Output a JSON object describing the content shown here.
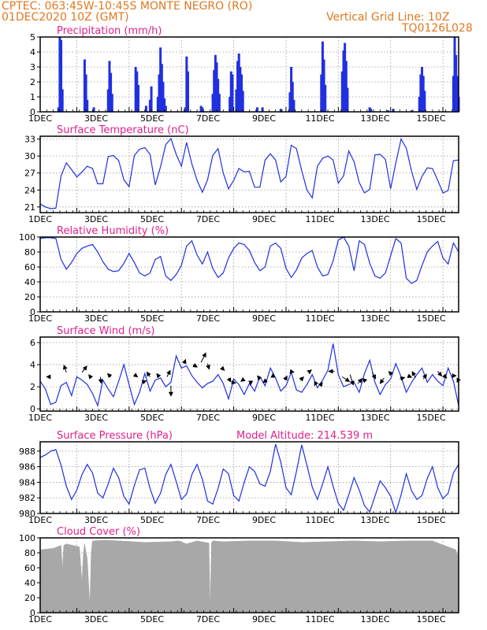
{
  "header": {
    "line1": "CPTEC:   063:45W-10:45S   MONTE NEGRO (RO)",
    "line2": "01DEC2020 10Z (GMT)",
    "right1": "Vertical Grid Line: 10Z",
    "right2": "TQ0126L028"
  },
  "colors": {
    "series": "#2030e0",
    "title": "#e0208a",
    "header": "#e07820",
    "cloud": "#a8a8a8",
    "grid": "#999999"
  },
  "x_tick_labels": [
    "1DEC",
    "3DEC",
    "5DEC",
    "7DEC",
    "9DEC",
    "11DEC",
    "13DEC",
    "15DEC"
  ],
  "chart_data": [
    {
      "id": "precip",
      "type": "bar",
      "title": "Precipitation (mm/h)",
      "ylim": [
        0,
        5
      ],
      "yticks": [
        0,
        1,
        2,
        3,
        4,
        5
      ],
      "x_unit": "days since 01DEC2020 00Z",
      "xlim": [
        0,
        16
      ],
      "bars": [
        [
          0.7,
          0.3
        ],
        [
          0.75,
          5
        ],
        [
          0.8,
          4.8
        ],
        [
          0.85,
          1.5
        ],
        [
          1.7,
          3.5
        ],
        [
          1.75,
          2.5
        ],
        [
          1.8,
          0.8
        ],
        [
          2.05,
          0.3
        ],
        [
          2.6,
          1.5
        ],
        [
          2.65,
          3.4
        ],
        [
          2.7,
          2.6
        ],
        [
          2.75,
          1.2
        ],
        [
          3.65,
          3
        ],
        [
          3.7,
          2.7
        ],
        [
          3.75,
          1.8
        ],
        [
          4.05,
          0.4
        ],
        [
          4.2,
          0.8
        ],
        [
          4.25,
          1.7
        ],
        [
          4.5,
          1
        ],
        [
          4.55,
          2.5
        ],
        [
          4.6,
          4.3
        ],
        [
          4.65,
          3.2
        ],
        [
          4.7,
          2
        ],
        [
          4.75,
          0.9
        ],
        [
          4.8,
          0.4
        ],
        [
          5.55,
          0.3
        ],
        [
          5.6,
          3.7
        ],
        [
          5.65,
          2.7
        ],
        [
          6.15,
          0.4
        ],
        [
          6.2,
          0.3
        ],
        [
          6.6,
          1.2
        ],
        [
          6.65,
          2.8
        ],
        [
          6.7,
          3.8
        ],
        [
          6.75,
          3.3
        ],
        [
          6.8,
          2.2
        ],
        [
          6.85,
          1.2
        ],
        [
          7.25,
          1
        ],
        [
          7.3,
          2.7
        ],
        [
          7.35,
          2.5
        ],
        [
          7.5,
          1.5
        ],
        [
          7.55,
          3.4
        ],
        [
          7.6,
          3.9
        ],
        [
          7.65,
          3
        ],
        [
          7.7,
          2.5
        ],
        [
          7.75,
          1.4
        ],
        [
          8.3,
          0.3
        ],
        [
          8.5,
          0.3
        ],
        [
          9.2,
          0.2
        ],
        [
          9.55,
          1.3
        ],
        [
          9.6,
          3
        ],
        [
          9.65,
          2
        ],
        [
          9.7,
          0.8
        ],
        [
          10.75,
          2.5
        ],
        [
          10.8,
          4.7
        ],
        [
          10.85,
          3.5
        ],
        [
          10.9,
          1.8
        ],
        [
          11.55,
          2.7
        ],
        [
          11.6,
          4.1
        ],
        [
          11.65,
          4.6
        ],
        [
          11.7,
          3.4
        ],
        [
          11.75,
          1.6
        ],
        [
          12.6,
          0.3
        ],
        [
          12.65,
          0.2
        ],
        [
          13.3,
          0.1
        ],
        [
          13.5,
          0.2
        ],
        [
          14.2,
          0.1
        ],
        [
          14.5,
          1
        ],
        [
          14.55,
          2.5
        ],
        [
          14.6,
          3
        ],
        [
          14.65,
          2.4
        ],
        [
          14.7,
          1.4
        ],
        [
          15.8,
          2.4
        ],
        [
          15.85,
          5
        ],
        [
          15.9,
          3.8
        ],
        [
          15.95,
          2.4
        ],
        [
          16,
          1
        ]
      ]
    },
    {
      "id": "temp",
      "type": "line",
      "title": "Surface Temperature (nC)",
      "ylim": [
        20,
        33.5
      ],
      "yticks": [
        21,
        24,
        27,
        30,
        33
      ],
      "x": [
        0,
        0.2,
        0.4,
        0.6,
        0.8,
        1,
        1.2,
        1.4,
        1.6,
        1.8,
        2,
        2.2,
        2.4,
        2.6,
        2.8,
        3,
        3.2,
        3.4,
        3.6,
        3.8,
        4,
        4.2,
        4.4,
        4.6,
        4.8,
        5,
        5.2,
        5.4,
        5.6,
        5.8,
        6,
        6.2,
        6.4,
        6.6,
        6.8,
        7,
        7.2,
        7.4,
        7.6,
        7.8,
        8,
        8.2,
        8.4,
        8.6,
        8.8,
        9,
        9.2,
        9.4,
        9.6,
        9.8,
        10,
        10.2,
        10.4,
        10.6,
        10.8,
        11,
        11.2,
        11.4,
        11.6,
        11.8,
        12,
        12.2,
        12.4,
        12.6,
        12.8,
        13,
        13.2,
        13.4,
        13.6,
        13.8,
        14,
        14.2,
        14.4,
        14.6,
        14.8,
        15,
        15.2,
        15.4,
        15.6,
        15.8,
        16
      ],
      "y": [
        21.5,
        21,
        20.7,
        20.8,
        26.5,
        28.8,
        27.6,
        26.3,
        27.2,
        28.2,
        27.8,
        25.1,
        25.1,
        29.9,
        30.1,
        29.2,
        25.8,
        24.6,
        30.1,
        31.2,
        31.5,
        30.3,
        24.9,
        28.1,
        32,
        33.1,
        30.3,
        28.2,
        32.4,
        28.6,
        25.7,
        23.6,
        25.8,
        30.1,
        31.3,
        27,
        24.2,
        25.7,
        27.8,
        27.2,
        27.3,
        24.5,
        24.5,
        29.3,
        30.4,
        29.3,
        25.4,
        26.4,
        31.9,
        31.3,
        27.4,
        24,
        22.6,
        28.2,
        29.6,
        30,
        29.3,
        25.2,
        26.5,
        30.9,
        29,
        25.3,
        23.5,
        24.1,
        30.2,
        30.3,
        29.4,
        24.2,
        28.8,
        33,
        31.4,
        27.3,
        24.1,
        26.4,
        27.9,
        27.8,
        25.7,
        23.5,
        23.9,
        29.2,
        29.3
      ]
    },
    {
      "id": "rh",
      "type": "line",
      "title": "Relative Humidity (%)",
      "ylim": [
        0,
        100
      ],
      "yticks": [
        0,
        20,
        40,
        60,
        80,
        100
      ],
      "x": [
        0,
        0.2,
        0.4,
        0.6,
        0.8,
        1,
        1.2,
        1.4,
        1.6,
        1.8,
        2,
        2.2,
        2.4,
        2.6,
        2.8,
        3,
        3.2,
        3.4,
        3.6,
        3.8,
        4,
        4.2,
        4.4,
        4.6,
        4.8,
        5,
        5.2,
        5.4,
        5.6,
        5.8,
        6,
        6.2,
        6.4,
        6.6,
        6.8,
        7,
        7.2,
        7.4,
        7.6,
        7.8,
        8,
        8.2,
        8.4,
        8.6,
        8.8,
        9,
        9.2,
        9.4,
        9.6,
        9.8,
        10,
        10.2,
        10.4,
        10.6,
        10.8,
        11,
        11.2,
        11.4,
        11.6,
        11.8,
        12,
        12.2,
        12.4,
        12.6,
        12.8,
        13,
        13.2,
        13.4,
        13.6,
        13.8,
        14,
        14.2,
        14.4,
        14.6,
        14.8,
        15,
        15.2,
        15.4,
        15.6,
        15.8,
        16
      ],
      "y": [
        98,
        99,
        99,
        98,
        70,
        57,
        66,
        78,
        85,
        88,
        90,
        80,
        67,
        57,
        54,
        55,
        65,
        78,
        66,
        52,
        48,
        52,
        70,
        74,
        48,
        42,
        50,
        62,
        88,
        95,
        76,
        64,
        80,
        58,
        46,
        52,
        72,
        85,
        92,
        90,
        82,
        66,
        55,
        60,
        88,
        92,
        85,
        58,
        46,
        56,
        72,
        78,
        82,
        60,
        48,
        50,
        68,
        96,
        100,
        88,
        55,
        95,
        90,
        65,
        48,
        45,
        52,
        75,
        98,
        92,
        45,
        38,
        42,
        62,
        80,
        88,
        94,
        72,
        64,
        92,
        80
      ]
    },
    {
      "id": "wind",
      "type": "line",
      "title": "Surface Wind (m/s)",
      "ylim": [
        -0.2,
        6.5
      ],
      "yticks": [
        0,
        2,
        4,
        6
      ],
      "x": [
        0,
        0.2,
        0.4,
        0.6,
        0.8,
        1,
        1.2,
        1.4,
        1.6,
        1.8,
        2,
        2.2,
        2.4,
        2.6,
        2.8,
        3,
        3.2,
        3.4,
        3.6,
        3.8,
        4,
        4.2,
        4.4,
        4.6,
        4.8,
        5,
        5.2,
        5.4,
        5.6,
        5.8,
        6,
        6.2,
        6.4,
        6.6,
        6.8,
        7,
        7.2,
        7.4,
        7.6,
        7.8,
        8,
        8.2,
        8.4,
        8.6,
        8.8,
        9,
        9.2,
        9.4,
        9.6,
        9.8,
        10,
        10.2,
        10.4,
        10.6,
        10.8,
        11,
        11.2,
        11.4,
        11.6,
        11.8,
        12,
        12.2,
        12.4,
        12.6,
        12.8,
        13,
        13.2,
        13.4,
        13.6,
        13.8,
        14,
        14.2,
        14.4,
        14.6,
        14.8,
        15,
        15.2,
        15.4,
        15.6,
        15.8,
        16
      ],
      "y": [
        2.5,
        1.8,
        0.4,
        0.6,
        2.1,
        2.4,
        1.2,
        2.9,
        2.6,
        2.2,
        1.4,
        0.3,
        2.6,
        1.8,
        1.1,
        2.5,
        4,
        2.2,
        0.4,
        1.5,
        3.2,
        1.6,
        2.6,
        2.8,
        2,
        2.4,
        4.8,
        3.7,
        3.9,
        3,
        2.4,
        1.9,
        2.3,
        2.5,
        3.1,
        2.3,
        0.9,
        2.7,
        2.2,
        1.3,
        2.3,
        1.6,
        2.9,
        2.1,
        3.7,
        2.8,
        1.6,
        2.1,
        3.3,
        1.7,
        1.5,
        2.2,
        3.1,
        1.9,
        2.6,
        3.5,
        5.9,
        3.1,
        2,
        2.2,
        2.4,
        1.5,
        3.2,
        4.4,
        2.4,
        1.3,
        2.2,
        2.7,
        4.1,
        2.9,
        1.5,
        2.4,
        3.1,
        3.7,
        2.4,
        3.1,
        2.5,
        2.1,
        3.7,
        2.5,
        0.3
      ],
      "arrows": [
        [
          0.4,
          2.9,
          -0.5,
          0
        ],
        [
          1,
          3.3,
          -0.3,
          0.9
        ],
        [
          1.6,
          3.3,
          0.6,
          0.8
        ],
        [
          1.95,
          2.8,
          -0.3,
          0.4
        ],
        [
          2.3,
          2.9,
          0.1,
          -0.8
        ],
        [
          2.7,
          2.9,
          -0.4,
          0.4
        ],
        [
          3.6,
          3.1,
          0.4,
          -0.3
        ],
        [
          3.9,
          2.4,
          0.5,
          0.2
        ],
        [
          4.2,
          2.9,
          -0.4,
          0.6
        ],
        [
          4.55,
          2.9,
          -0.3,
          0.4
        ],
        [
          4.85,
          2.9,
          0.4,
          0.8
        ],
        [
          5,
          2.1,
          0,
          -1.3
        ],
        [
          5.5,
          4.1,
          0.2,
          0.5
        ],
        [
          5.85,
          4,
          0.5,
          -0.3
        ],
        [
          6.15,
          4.2,
          0.6,
          1.2
        ],
        [
          6.4,
          4.1,
          0.2,
          -0.7
        ],
        [
          6.95,
          3.7,
          0.3,
          -0.3
        ],
        [
          7.2,
          2.8,
          0.3,
          -0.5
        ],
        [
          7.35,
          2.4,
          0.4,
          -0.1
        ],
        [
          7.8,
          2.7,
          -0.4,
          -0.3
        ],
        [
          8.05,
          2.4,
          0,
          -0.3
        ],
        [
          8.4,
          2.7,
          -0.3,
          0.4
        ],
        [
          8.65,
          2.6,
          -0.4,
          -0.3
        ],
        [
          8.9,
          2.9,
          0,
          0.4
        ],
        [
          9.35,
          2.6,
          0.3,
          0.5
        ],
        [
          9.55,
          3.4,
          0.5,
          -0.1
        ],
        [
          9.95,
          2.6,
          0.4,
          0.4
        ],
        [
          10.25,
          3.3,
          0.4,
          0.3
        ],
        [
          10.55,
          2.4,
          -0.2,
          -0.4
        ],
        [
          10.7,
          2.1,
          0.3,
          0.4
        ],
        [
          11.25,
          3.4,
          -0.7,
          0
        ],
        [
          11.55,
          2.9,
          0.9,
          -0.6
        ],
        [
          11.85,
          3.1,
          0.4,
          -1.3
        ],
        [
          12.15,
          2.3,
          0.5,
          0.6
        ],
        [
          12.4,
          2.6,
          -0.2,
          0.2
        ],
        [
          12.7,
          3.3,
          0.4,
          -0.8
        ],
        [
          13.15,
          2.8,
          -0.5,
          -0.7
        ],
        [
          13.45,
          3.1,
          -0.4,
          0.4
        ],
        [
          13.75,
          2.7,
          0.6,
          0.2
        ],
        [
          14.05,
          3,
          0.5,
          -0.2
        ],
        [
          14.35,
          2.8,
          -0.4,
          0.8
        ],
        [
          14.65,
          2.7,
          0.4,
          0.6
        ],
        [
          15.2,
          3.4,
          0.5,
          -0.6
        ],
        [
          15.45,
          3,
          0.3,
          -0.3
        ],
        [
          15.75,
          3,
          0.5,
          0
        ],
        [
          16,
          2.7,
          -0.2,
          -0.4
        ]
      ]
    },
    {
      "id": "pres",
      "type": "line",
      "title": "Surface Pressure (hPa)",
      "annotation": "Model Altitude: 214.539  m",
      "ylim": [
        980,
        989.2
      ],
      "yticks": [
        980,
        982,
        984,
        986,
        988
      ],
      "x": [
        0,
        0.2,
        0.4,
        0.6,
        0.8,
        1,
        1.2,
        1.4,
        1.6,
        1.8,
        2,
        2.2,
        2.4,
        2.6,
        2.8,
        3,
        3.2,
        3.4,
        3.6,
        3.8,
        4,
        4.2,
        4.4,
        4.6,
        4.8,
        5,
        5.2,
        5.4,
        5.6,
        5.8,
        6,
        6.2,
        6.4,
        6.6,
        6.8,
        7,
        7.2,
        7.4,
        7.6,
        7.8,
        8,
        8.2,
        8.4,
        8.6,
        8.8,
        9,
        9.2,
        9.4,
        9.6,
        9.8,
        10,
        10.2,
        10.4,
        10.6,
        10.8,
        11,
        11.2,
        11.4,
        11.6,
        11.8,
        12,
        12.2,
        12.4,
        12.6,
        12.8,
        13,
        13.2,
        13.4,
        13.6,
        13.8,
        14,
        14.2,
        14.4,
        14.6,
        14.8,
        15,
        15.2,
        15.4,
        15.6,
        15.8,
        16
      ],
      "y": [
        987.2,
        987.5,
        988,
        988.2,
        986.2,
        983.5,
        981.8,
        983,
        985,
        986.3,
        985.2,
        982.6,
        982,
        983.8,
        985.8,
        984.6,
        982.2,
        981.2,
        983.6,
        985.6,
        985.8,
        983.2,
        981.3,
        982.6,
        985,
        986.3,
        984.1,
        981.8,
        982.5,
        985,
        986.3,
        984.4,
        981.6,
        981.2,
        983.2,
        985.7,
        985.1,
        982.3,
        981.6,
        984,
        986,
        985.4,
        983.8,
        983.5,
        985.4,
        988.9,
        986.6,
        983.3,
        982.4,
        985.4,
        988.8,
        986.2,
        983.4,
        981.8,
        983.8,
        986,
        983.5,
        981.3,
        980.4,
        982.4,
        984.6,
        983,
        981,
        980.2,
        982.2,
        984.2,
        983.3,
        982.2,
        980.1,
        982.4,
        985.1,
        982.9,
        981.8,
        982.3,
        984.5,
        986,
        983.3,
        981.9,
        982.6,
        985.2,
        986.3
      ]
    },
    {
      "id": "cloud",
      "type": "area",
      "title": "Cloud Cover (%)",
      "ylim": [
        0,
        100
      ],
      "yticks": [
        0,
        20,
        40,
        60,
        80,
        100
      ],
      "x": [
        0,
        0.5,
        0.8,
        0.85,
        0.9,
        1,
        1.5,
        1.6,
        1.65,
        1.7,
        1.8,
        1.9,
        1.95,
        2,
        2.5,
        3,
        4,
        5,
        5.3,
        5.6,
        6,
        6.45,
        6.5,
        6.55,
        6.6,
        7,
        8,
        9,
        10,
        11,
        12,
        13,
        14,
        15,
        15.9,
        15.95,
        16
      ],
      "y": [
        84,
        86,
        90,
        58,
        90,
        92,
        88,
        40,
        80,
        92,
        72,
        10,
        80,
        96,
        97,
        96,
        94,
        95,
        96,
        92,
        96,
        93,
        5,
        94,
        96,
        95,
        96,
        96,
        94,
        95,
        96,
        95,
        96,
        96,
        84,
        75,
        92
      ]
    }
  ]
}
